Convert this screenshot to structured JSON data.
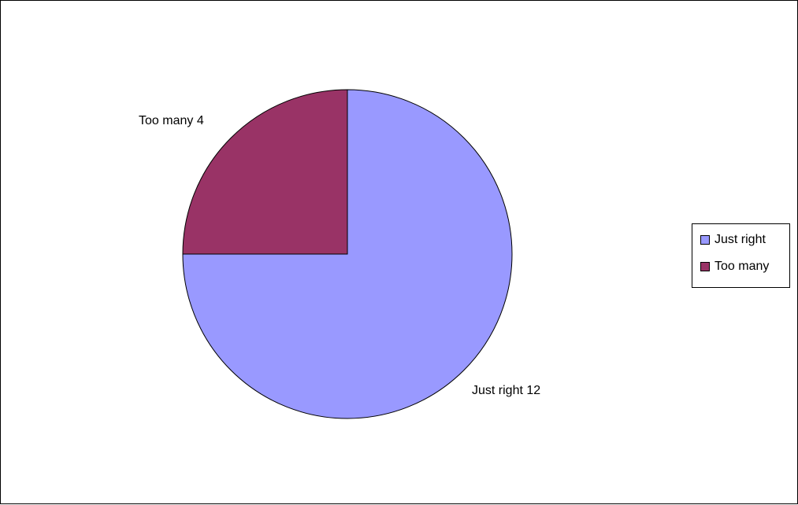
{
  "chart_data": {
    "type": "pie",
    "categories": [
      "Just right",
      "Too many"
    ],
    "values": [
      12,
      4
    ],
    "colors": [
      "#9999ff",
      "#993366"
    ],
    "data_labels": [
      "Just right 12",
      "Too many 4"
    ],
    "legend": {
      "placement": "right",
      "entries": [
        "Just right",
        "Too many"
      ]
    },
    "start_angle_degrees": 0,
    "direction": "clockwise-from-top"
  }
}
